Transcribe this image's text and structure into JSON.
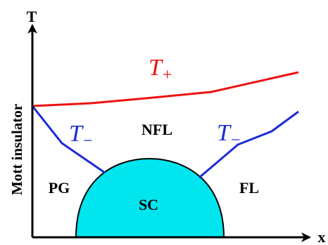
{
  "diagram": {
    "axes": {
      "y_label": "T",
      "x_label": "x",
      "side_label": "Mott insulator"
    },
    "curves": {
      "t_plus": {
        "symbol": "T",
        "sub": "+",
        "color": "#ee1111"
      },
      "t_minus": {
        "symbol": "T",
        "sub": "−",
        "color": "#1a2bd6"
      }
    },
    "regions": {
      "nfl": "NFL",
      "pg": "PG",
      "sc": "SC",
      "fl": "FL"
    },
    "dome_color": "#00e5ee",
    "axis_color": "#000000"
  }
}
